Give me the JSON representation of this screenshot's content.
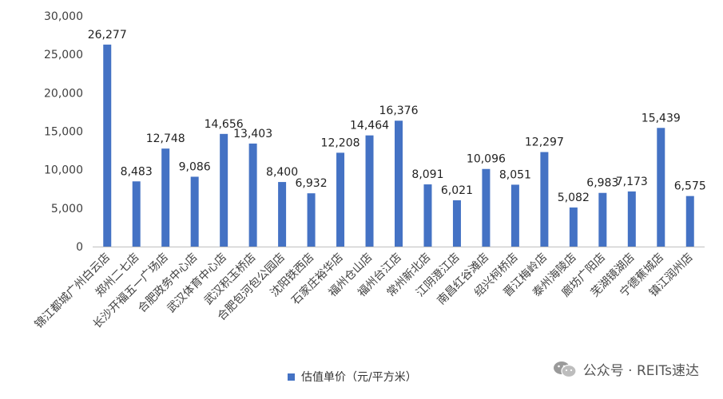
{
  "chart_data": {
    "type": "bar",
    "categories": [
      "锦江都城广州白云店",
      "郑州二七店",
      "长沙开福五一广场店",
      "合肥政务中心店",
      "武汉体育中心店",
      "武汉积玉桥店",
      "合肥包河包公园店",
      "沈阳铁西店",
      "石家庄裕华店",
      "福州仓山店",
      "福州台江店",
      "常州新北店",
      "江阴澄江店",
      "南昌红谷滩店",
      "绍兴柯桥店",
      "晋江梅岭店",
      "泰州海陵店",
      "廊坊广阳店",
      "芜湖镜湖店",
      "宁德蕉城店",
      "镇江润州店"
    ],
    "value_labels": [
      "26,277",
      "8,483",
      "12,748",
      "9,086",
      "14,656",
      "13,403",
      "8,400",
      "6,932",
      "12,208",
      "14,464",
      "16,376",
      "8,091",
      "6,021",
      "10,096",
      "8,051",
      "12,297",
      "5,082",
      "6,983",
      "7,173",
      "15,439",
      "6,575"
    ],
    "series": [
      {
        "name": "估值单价（元/平方米）",
        "values": [
          26277,
          8483,
          12748,
          9086,
          14656,
          13403,
          8400,
          6932,
          12208,
          14464,
          16376,
          8091,
          6021,
          10096,
          8051,
          12297,
          5082,
          6983,
          7173,
          15439,
          6575
        ]
      }
    ],
    "ylim": [
      0,
      30000
    ],
    "yticks": [
      0,
      5000,
      10000,
      15000,
      20000,
      25000,
      30000
    ],
    "ytick_labels": [
      "0",
      "5,000",
      "10,000",
      "15,000",
      "20,000",
      "25,000",
      "30,000"
    ],
    "grid": false,
    "legend_position": "bottom",
    "colors": {
      "bar": "#4472C4",
      "axis": "#bfbfbf",
      "text": "#404040"
    }
  },
  "watermark": {
    "icon": "wechat-icon",
    "text": "公众号 · REITs速达"
  }
}
